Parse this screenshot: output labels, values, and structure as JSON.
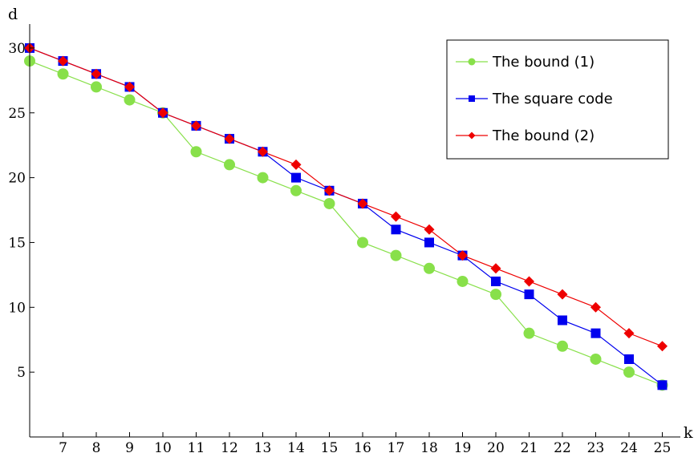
{
  "chart_data": {
    "type": "line",
    "xlabel": "k",
    "ylabel": "d",
    "x": [
      6,
      7,
      8,
      9,
      10,
      11,
      12,
      13,
      14,
      15,
      16,
      17,
      18,
      19,
      20,
      21,
      22,
      23,
      24,
      25
    ],
    "xticks": [
      "7",
      "8",
      "9",
      "10",
      "11",
      "12",
      "13",
      "14",
      "15",
      "16",
      "17",
      "18",
      "19",
      "20",
      "21",
      "22",
      "23",
      "24",
      "25"
    ],
    "yticks": [
      "5",
      "10",
      "15",
      "20",
      "25",
      "30"
    ],
    "xlim": [
      6,
      25
    ],
    "ylim": [
      0,
      30
    ],
    "legend_position": "top-right",
    "series": [
      {
        "name": "The bound (1)",
        "color": "#88e04a",
        "marker": "circle",
        "values": [
          29,
          28,
          27,
          26,
          25,
          22,
          21,
          20,
          19,
          18,
          15,
          14,
          13,
          12,
          11,
          8,
          7,
          6,
          5,
          4
        ]
      },
      {
        "name": "The square code",
        "color": "#0000ee",
        "marker": "square",
        "values": [
          30,
          29,
          28,
          27,
          25,
          24,
          23,
          22,
          20,
          19,
          18,
          16,
          15,
          14,
          12,
          11,
          9,
          8,
          6,
          4
        ]
      },
      {
        "name": "The bound (2)",
        "color": "#ee0000",
        "marker": "diamond",
        "values": [
          30,
          29,
          28,
          27,
          25,
          24,
          23,
          22,
          21,
          19,
          18,
          17,
          16,
          14,
          13,
          12,
          11,
          10,
          8,
          7
        ]
      }
    ]
  }
}
